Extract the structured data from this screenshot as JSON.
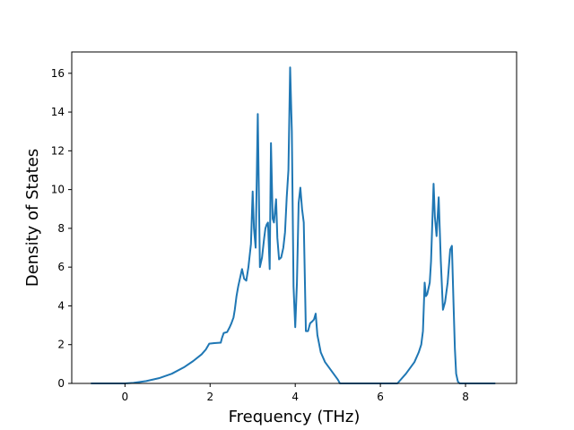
{
  "chart_data": {
    "type": "line",
    "title": "",
    "xlabel": "Frequency (THz)",
    "ylabel": "Density of States",
    "xlim": [
      -1.25,
      9.2
    ],
    "ylim": [
      0,
      17.1
    ],
    "x_ticks": [
      0,
      2,
      4,
      6,
      8
    ],
    "y_ticks": [
      0,
      2,
      4,
      6,
      8,
      10,
      12,
      14,
      16
    ],
    "x_tick_labels": [
      "0",
      "2",
      "4",
      "6",
      "8"
    ],
    "y_tick_labels": [
      "0",
      "2",
      "4",
      "6",
      "8",
      "10",
      "12",
      "14",
      "16"
    ],
    "grid": false,
    "legend": "none",
    "line_color": "#1f77b4",
    "series": [
      {
        "x": [
          -0.8,
          -0.4,
          0.0,
          0.2,
          0.5,
          0.8,
          1.1,
          1.4,
          1.6,
          1.8,
          1.9,
          1.98,
          2.1,
          2.25,
          2.28,
          2.32,
          2.4,
          2.46,
          2.5,
          2.55,
          2.58,
          2.62,
          2.66,
          2.75,
          2.8,
          2.85,
          2.9,
          2.93,
          2.96,
          3.0,
          3.03,
          3.07,
          3.12,
          3.17,
          3.22,
          3.27,
          3.3,
          3.33,
          3.36,
          3.4,
          3.43,
          3.47,
          3.5,
          3.55,
          3.58,
          3.62,
          3.67,
          3.72,
          3.76,
          3.8,
          3.84,
          3.88,
          3.92,
          3.96,
          4.0,
          4.04,
          4.08,
          4.12,
          4.16,
          4.2,
          4.25,
          4.3,
          4.35,
          4.4,
          4.44,
          4.48,
          4.52,
          4.6,
          4.7,
          4.8,
          4.9,
          5.0,
          5.05,
          5.1,
          5.2,
          5.5,
          6.0,
          6.4,
          6.52,
          6.6,
          6.7,
          6.8,
          6.9,
          6.96,
          7.0,
          7.04,
          7.07,
          7.1,
          7.13,
          7.16,
          7.19,
          7.22,
          7.25,
          7.28,
          7.32,
          7.37,
          7.42,
          7.47,
          7.52,
          7.58,
          7.64,
          7.68,
          7.72,
          7.75,
          7.78,
          7.82,
          7.86,
          7.88,
          7.92,
          8.0,
          8.3,
          8.7
        ],
        "y": [
          0,
          0,
          0,
          0.03,
          0.12,
          0.27,
          0.5,
          0.85,
          1.15,
          1.5,
          1.75,
          2.05,
          2.08,
          2.1,
          2.35,
          2.6,
          2.65,
          2.9,
          3.1,
          3.4,
          3.8,
          4.5,
          5.0,
          5.9,
          5.4,
          5.3,
          6.0,
          6.6,
          7.2,
          9.9,
          8.0,
          7.0,
          13.9,
          6.0,
          6.5,
          7.5,
          8.0,
          8.2,
          8.3,
          5.9,
          12.4,
          8.5,
          8.3,
          9.5,
          7.5,
          6.4,
          6.5,
          7.0,
          7.8,
          9.6,
          11.0,
          16.3,
          13.0,
          5.0,
          2.9,
          5.2,
          9.3,
          10.1,
          9.0,
          8.3,
          2.7,
          2.7,
          3.1,
          3.2,
          3.3,
          3.6,
          2.5,
          1.6,
          1.1,
          0.8,
          0.5,
          0.2,
          0.0,
          0.0,
          0.0,
          0.0,
          0.0,
          0.0,
          0.3,
          0.5,
          0.8,
          1.1,
          1.6,
          2.0,
          2.7,
          5.2,
          4.5,
          4.6,
          4.9,
          5.2,
          6.3,
          8.3,
          10.3,
          8.6,
          7.6,
          9.6,
          6.3,
          3.8,
          4.2,
          5.2,
          6.9,
          7.1,
          4.0,
          1.8,
          0.5,
          0.1,
          0.0,
          0.0,
          0.0,
          0.0,
          0.0,
          0.0
        ]
      }
    ]
  }
}
